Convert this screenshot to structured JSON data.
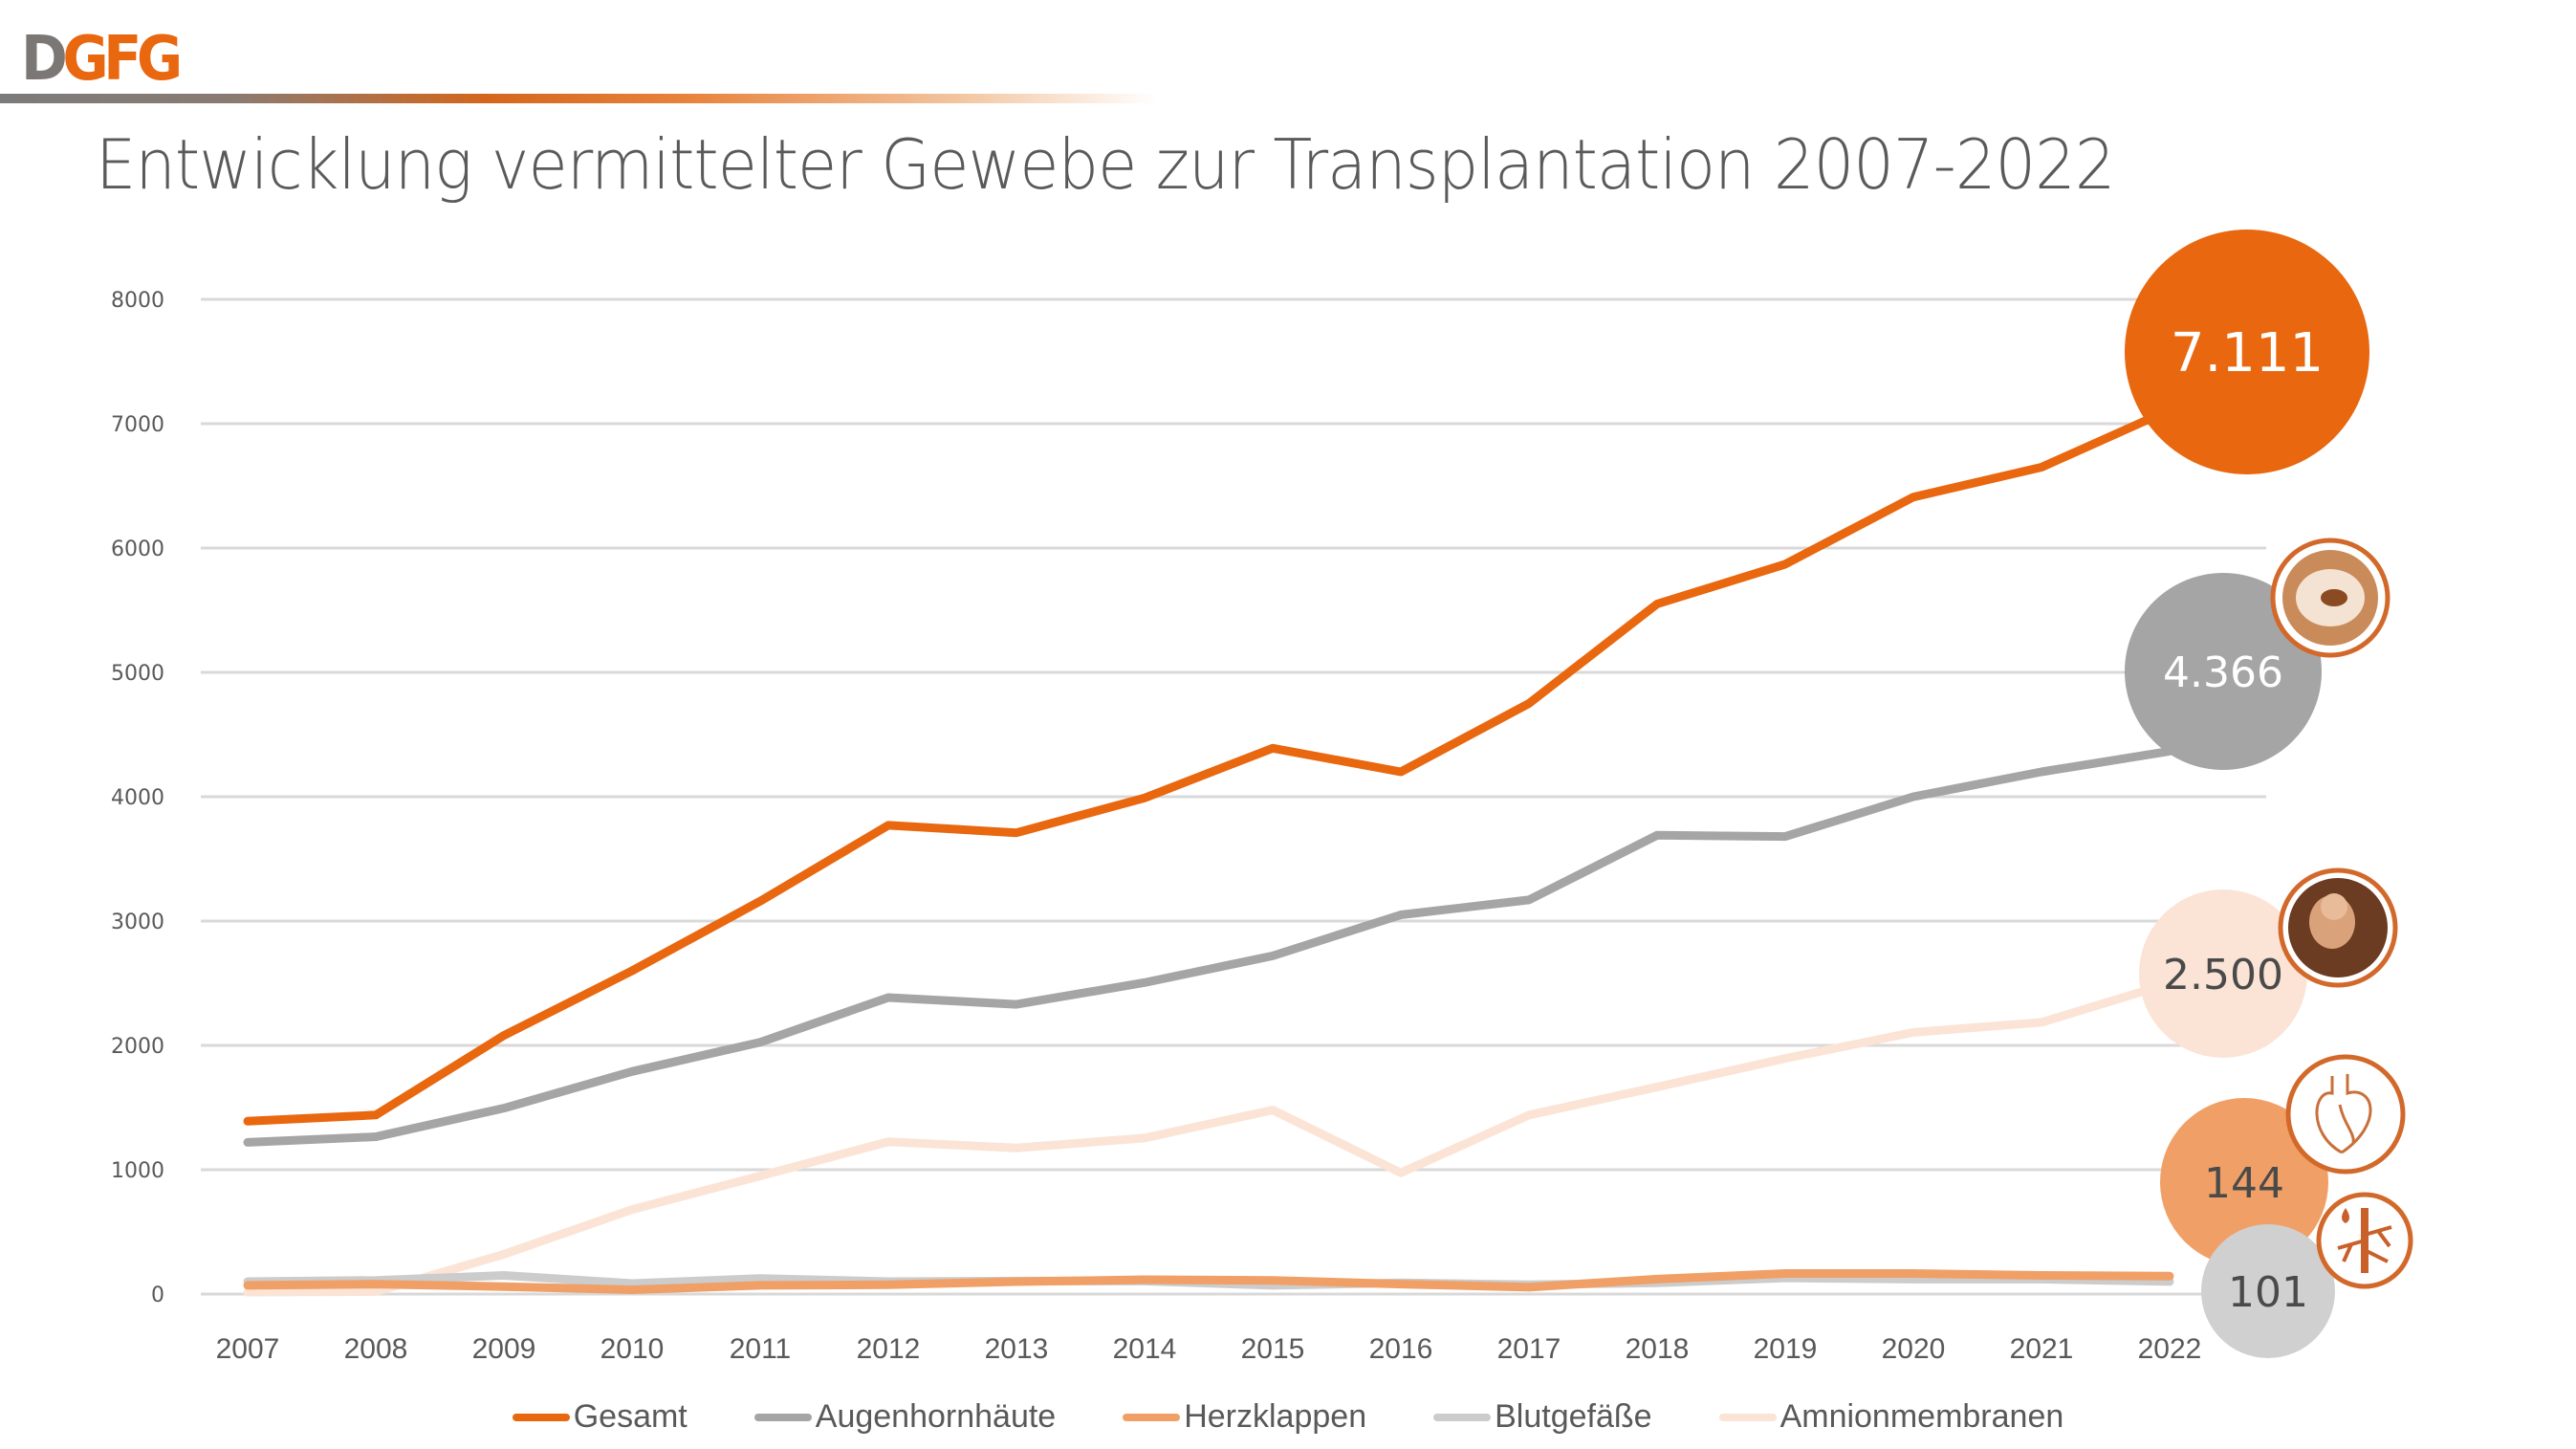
{
  "header": {
    "logo_d": "D",
    "logo_gfg": "GFG",
    "title": "Entwicklung vermittelter Gewebe zur Transplantation 2007-2022"
  },
  "chart_data": {
    "type": "line",
    "title": "Entwicklung vermittelter Gewebe zur Transplantation 2007-2022",
    "xlabel": "",
    "ylabel": "",
    "ylim": [
      0,
      8000
    ],
    "yticks": [
      0,
      1000,
      2000,
      3000,
      4000,
      5000,
      6000,
      7000,
      8000
    ],
    "grid": true,
    "legend_position": "bottom",
    "x": [
      "2007",
      "2008",
      "2009",
      "2010",
      "2011",
      "2012",
      "2013",
      "2014",
      "2015",
      "2016",
      "2017",
      "2018",
      "2019",
      "2020",
      "2021",
      "2022"
    ],
    "series": [
      {
        "name": "Gesamt",
        "color": "#e8670f",
        "values": [
          1390,
          1440,
          2080,
          2600,
          3160,
          3770,
          3710,
          3990,
          4390,
          4200,
          4750,
          5550,
          5870,
          6410,
          6650,
          7111
        ],
        "end_label": "7.111",
        "end_bubble_color": "#e8670f",
        "end_label_color": "#ffffff",
        "end_icon": "tissue-icon"
      },
      {
        "name": "Augenhornhäute",
        "color": "#a5a5a5",
        "values": [
          1220,
          1265,
          1495,
          1790,
          2025,
          2385,
          2330,
          2505,
          2720,
          3050,
          3170,
          3690,
          3680,
          4000,
          4200,
          4366
        ],
        "end_label": "4.366",
        "end_bubble_color": "#a5a5a5",
        "end_label_color": "#ffffff",
        "end_icon": "eye-cornea-icon"
      },
      {
        "name": "Herzklappen",
        "color": "#f0a066",
        "values": [
          70,
          80,
          60,
          35,
          70,
          75,
          100,
          115,
          110,
          80,
          55,
          120,
          165,
          165,
          150,
          144
        ],
        "end_label": "144",
        "end_bubble_color": "#f0a066",
        "end_label_color": "#4a4a4a",
        "end_icon": "heart-icon"
      },
      {
        "name": "Blutgefäße",
        "color": "#cccccc",
        "values": [
          100,
          110,
          150,
          85,
          125,
          100,
          105,
          105,
          70,
          90,
          75,
          90,
          130,
          120,
          120,
          101
        ],
        "end_label": "101",
        "end_bubble_color": "#d0d0d0",
        "end_label_color": "#4a4a4a",
        "end_icon": "blood-vessel-icon"
      },
      {
        "name": "Amnionmembranen",
        "color": "#fbe4d5",
        "values": [
          15,
          20,
          320,
          680,
          950,
          1225,
          1175,
          1255,
          1480,
          975,
          1440,
          1665,
          1895,
          2105,
          2185,
          2500
        ],
        "end_label": "2.500",
        "end_bubble_color": "#fbe4d5",
        "end_label_color": "#4a4a4a",
        "end_icon": "fetus-icon"
      }
    ]
  }
}
